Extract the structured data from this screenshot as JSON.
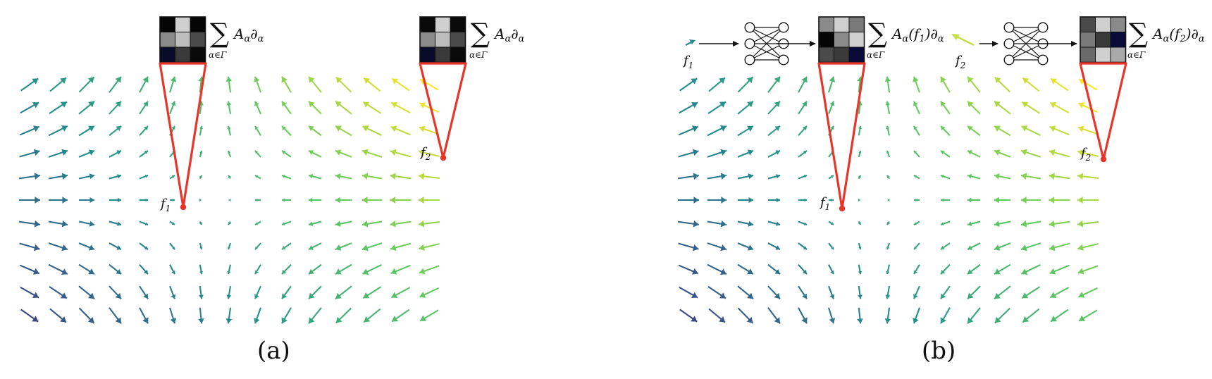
{
  "panels": {
    "a": {
      "label": "(a)",
      "point1_label": "f",
      "point1_sub": "1",
      "point2_label": "f",
      "point2_sub": "2",
      "formula1": {
        "sum": "∑",
        "sub": "α∈Γ",
        "term": "A",
        "term_sub": "α",
        "op": "∂",
        "op_sub": "α"
      },
      "formula2": {
        "sum": "∑",
        "sub": "α∈Γ",
        "term": "A",
        "term_sub": "α",
        "op": "∂",
        "op_sub": "α"
      }
    },
    "b": {
      "label": "(b)",
      "input1_label": "f",
      "input1_sub": "1",
      "input2_label": "f",
      "input2_sub": "2",
      "point1_label": "f",
      "point1_sub": "1",
      "point2_label": "f",
      "point2_sub": "2",
      "formula1": {
        "sum": "∑",
        "sub": "α∈Γ",
        "term": "A",
        "term_sub": "α",
        "arg": "(f",
        "arg_sub": "1",
        "arg_close": ")∂",
        "op_sub": "α"
      },
      "formula2": {
        "sum": "∑",
        "sub": "α∈Γ",
        "term": "A",
        "term_sub": "α",
        "arg": "(f",
        "arg_sub": "2",
        "arg_close": ")∂",
        "op_sub": "α"
      }
    }
  },
  "colors": {
    "highlight": "#e8352a",
    "arrow_dark": "#3b3f8a",
    "arrow_mid": "#2d8a8c",
    "arrow_light": "#d4e540"
  },
  "matrices": {
    "a1": [
      "#050505",
      "#cfcfcf",
      "#050505",
      "#8a8a8a",
      "#bdbdbd",
      "#4a4a4a",
      "#0a0a2a",
      "#3a3a3a",
      "#0a0a0a"
    ],
    "a2": [
      "#0a0a0a",
      "#cfcfcf",
      "#0a0a0a",
      "#8a8a8a",
      "#bdbdbd",
      "#4a4a4a",
      "#0a0a2a",
      "#3a3a3a",
      "#0a0a0a"
    ],
    "b1": [
      "#8a8a8a",
      "#cfcfcf",
      "#7a7a7a",
      "#050505",
      "#8a8a8a",
      "#d0d0d0",
      "#4a4a4a",
      "#3a3a3a",
      "#0a0a3a"
    ],
    "b2": [
      "#4a4a4a",
      "#cfcfcf",
      "#8a8a8a",
      "#7a7a7a",
      "#3a3a3a",
      "#0a0a3a",
      "#6a6a6a",
      "#cfcfcf",
      "#aaaaaa"
    ]
  }
}
